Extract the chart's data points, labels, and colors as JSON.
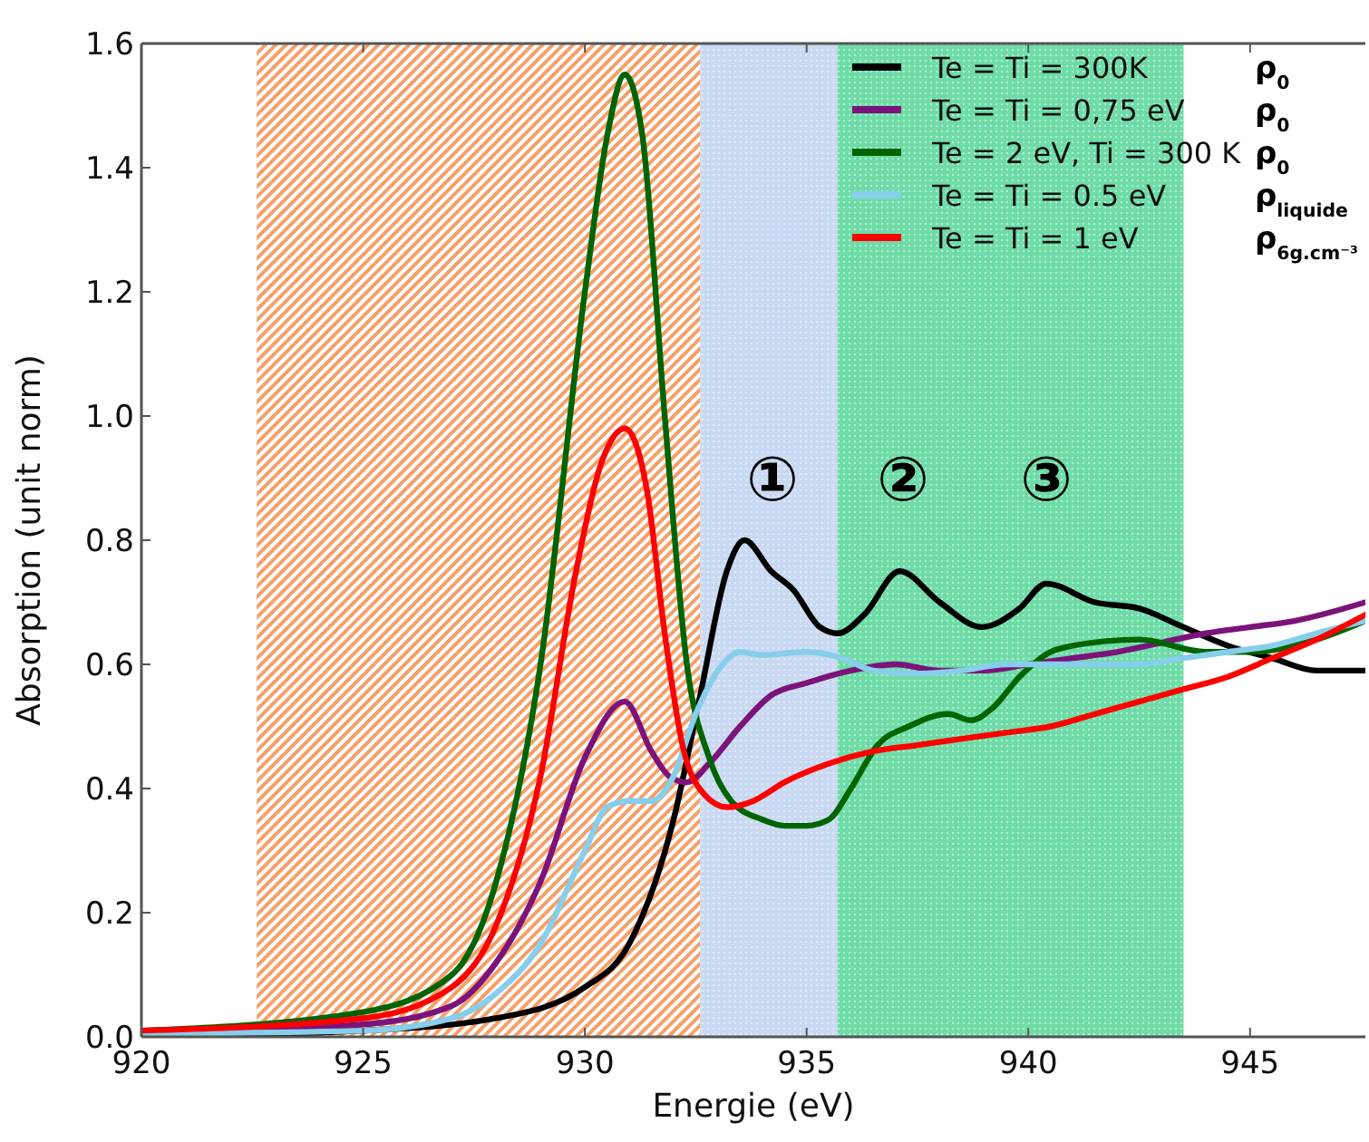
{
  "chart_data": {
    "type": "line",
    "xlabel": "Energie (eV)",
    "ylabel": "Absorption (unit norm)",
    "xlim": [
      920,
      947.6
    ],
    "xticks": [
      920,
      925,
      930,
      935,
      940,
      945
    ],
    "ylim": [
      0,
      1.6
    ],
    "yticks": [
      {
        "value": 0,
        "label": "0.0"
      },
      {
        "value": 0.2,
        "label": "0.2"
      },
      {
        "value": 0.4,
        "label": "0.4"
      },
      {
        "value": 0.6,
        "label": "0.6"
      },
      {
        "value": 0.8,
        "label": "0.8"
      },
      {
        "value": 1.0,
        "label": "1.0"
      },
      {
        "value": 1.2,
        "label": "1.2"
      },
      {
        "value": 1.4,
        "label": "1.4"
      },
      {
        "value": 1.6,
        "label": "1.6"
      }
    ],
    "grid": false,
    "legend": "top right",
    "line_style": "solid",
    "marker": "none",
    "bands": [
      {
        "axis": "x",
        "from": 922.6,
        "to": 932.6,
        "color": "#f4a06a"
      },
      {
        "axis": "x",
        "from": 932.6,
        "to": 935.7,
        "color": "#c9d9f2"
      },
      {
        "axis": "x",
        "from": 935.7,
        "to": 943.5,
        "color": "#6fdca8"
      }
    ],
    "annotations": [
      "①",
      "②",
      "③",
      "ρ$_{0}$",
      "ρ$_{0}$",
      "ρ$_{0}$",
      "ρ$_{liquide}$",
      "ρ$_{6g.cm⁻³}$"
    ],
    "series": [
      {
        "name": "Te = Ti = 300K",
        "color": "#000000",
        "x": [
          920,
          925,
          928,
          930,
          931,
          932,
          932.6,
          933.2,
          933.6,
          934.2,
          934.7,
          935.3,
          935.7,
          936.3,
          937.1,
          938,
          938.95,
          939.8,
          940.4,
          941.5,
          942.5,
          943.5,
          944.5,
          945.5,
          946.5,
          947.6
        ],
        "values": [
          0.0,
          0.01,
          0.03,
          0.08,
          0.15,
          0.35,
          0.55,
          0.75,
          0.8,
          0.75,
          0.72,
          0.66,
          0.65,
          0.68,
          0.75,
          0.7,
          0.66,
          0.69,
          0.73,
          0.7,
          0.69,
          0.66,
          0.63,
          0.61,
          0.59,
          0.59
        ]
      },
      {
        "name": "Te = Ti = 0,75 eV",
        "color": "#7b137b",
        "x": [
          920,
          925,
          927,
          928,
          929,
          930,
          930.9,
          931.5,
          931.9,
          932.3,
          932.8,
          933.5,
          934.2,
          935,
          936,
          937,
          938,
          939,
          940,
          941,
          942,
          943,
          944,
          945,
          946,
          947.6
        ],
        "values": [
          0.005,
          0.02,
          0.05,
          0.12,
          0.25,
          0.45,
          0.54,
          0.46,
          0.42,
          0.41,
          0.44,
          0.5,
          0.55,
          0.57,
          0.59,
          0.6,
          0.59,
          0.59,
          0.6,
          0.61,
          0.62,
          0.635,
          0.65,
          0.66,
          0.67,
          0.7
        ]
      },
      {
        "name": "Te = 2 eV, Ti = 300 K",
        "color": "#006400",
        "x": [
          920,
          925,
          927,
          928,
          929,
          930,
          930.5,
          930.9,
          931.3,
          931.8,
          932.3,
          932.8,
          933.3,
          934,
          934.5,
          935,
          935.5,
          936,
          936.6,
          937.3,
          938.2,
          938.7,
          939.2,
          939.8,
          940.5,
          941,
          942.5,
          944,
          945,
          946.5,
          947.6
        ],
        "values": [
          0.01,
          0.04,
          0.1,
          0.25,
          0.6,
          1.2,
          1.45,
          1.55,
          1.45,
          1.0,
          0.6,
          0.45,
          0.38,
          0.35,
          0.34,
          0.34,
          0.35,
          0.4,
          0.47,
          0.5,
          0.52,
          0.51,
          0.53,
          0.58,
          0.62,
          0.63,
          0.64,
          0.62,
          0.62,
          0.64,
          0.67
        ]
      },
      {
        "name": "Te = Ti = 0.5 eV",
        "color": "#87ceeb",
        "x": [
          920,
          925,
          927,
          928,
          929,
          930,
          930.5,
          931,
          931.5,
          932,
          932.5,
          933,
          933.5,
          934,
          935,
          935.8,
          936.5,
          937.5,
          938.5,
          939.5,
          940.5,
          941.5,
          942.5,
          943.5,
          944.5,
          945.5,
          946.5,
          947.6
        ],
        "values": [
          0.005,
          0.01,
          0.03,
          0.07,
          0.15,
          0.3,
          0.37,
          0.38,
          0.38,
          0.42,
          0.52,
          0.59,
          0.62,
          0.615,
          0.62,
          0.61,
          0.59,
          0.585,
          0.59,
          0.6,
          0.6,
          0.6,
          0.6,
          0.61,
          0.62,
          0.63,
          0.65,
          0.67
        ]
      },
      {
        "name": "Te = Ti = 1 eV",
        "color": "#ff0000",
        "x": [
          920,
          925,
          927,
          928,
          929,
          929.8,
          930.4,
          930.9,
          931.4,
          931.8,
          932.2,
          932.7,
          933.2,
          933.8,
          934.5,
          935.5,
          936.5,
          937.5,
          938.5,
          939.5,
          940.5,
          941.5,
          942.5,
          943.5,
          944.5,
          945.5,
          946.5,
          947.6
        ],
        "values": [
          0.01,
          0.03,
          0.08,
          0.18,
          0.42,
          0.75,
          0.93,
          0.98,
          0.88,
          0.65,
          0.47,
          0.39,
          0.37,
          0.38,
          0.41,
          0.44,
          0.46,
          0.47,
          0.48,
          0.49,
          0.5,
          0.52,
          0.54,
          0.56,
          0.58,
          0.61,
          0.64,
          0.68
        ]
      }
    ]
  }
}
